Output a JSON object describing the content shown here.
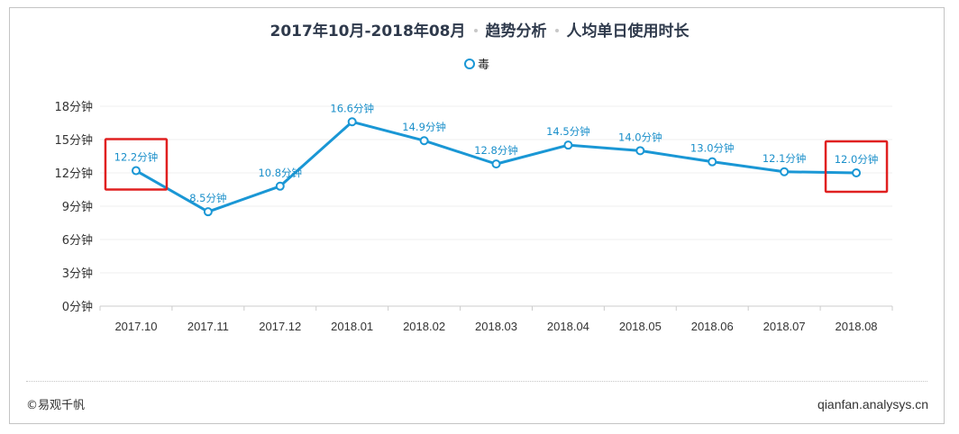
{
  "header": {
    "title_part1": "2017年10月-2018年08月",
    "title_part2": "趋势分析",
    "title_part3": "人均单日使用时长"
  },
  "legend": {
    "items": [
      {
        "label": "毒",
        "color": "#1a97d5"
      }
    ]
  },
  "footer": {
    "copyright": "©易观千帆",
    "site": "qianfan.analysys.cn"
  },
  "colors": {
    "series": "#1a97d5",
    "highlight_box": "#e02020",
    "grid": "#efefef",
    "axis": "#cccccc"
  },
  "highlights": [
    {
      "category": "2017.10",
      "label": "start-highlight-box"
    },
    {
      "category": "2018.08",
      "label": "end-highlight-box"
    }
  ],
  "chart_data": {
    "type": "line",
    "title": "2017年10月-2018年08月 · 趋势分析 · 人均单日使用时长",
    "xlabel": "",
    "ylabel": "",
    "categories": [
      "2017.10",
      "2017.11",
      "2017.12",
      "2018.01",
      "2018.02",
      "2018.03",
      "2018.04",
      "2018.05",
      "2018.06",
      "2018.07",
      "2018.08"
    ],
    "series": [
      {
        "name": "毒",
        "values": [
          12.2,
          8.5,
          10.8,
          16.6,
          14.9,
          12.8,
          14.5,
          14.0,
          13.0,
          12.1,
          12.0
        ],
        "data_labels": [
          "12.2分钟",
          "8.5分钟",
          "10.8分钟",
          "16.6分钟",
          "14.9分钟",
          "12.8分钟",
          "14.5分钟",
          "14.0分钟",
          "13.0分钟",
          "12.1分钟",
          "12.0分钟"
        ]
      }
    ],
    "yticks": [
      0,
      3,
      6,
      9,
      12,
      15,
      18
    ],
    "ytick_labels": [
      "0分钟",
      "3分钟",
      "6分钟",
      "9分钟",
      "12分钟",
      "15分钟",
      "18分钟"
    ],
    "ylim": [
      0,
      18
    ],
    "unit": "分钟",
    "grid": true,
    "legend_position": "top"
  }
}
